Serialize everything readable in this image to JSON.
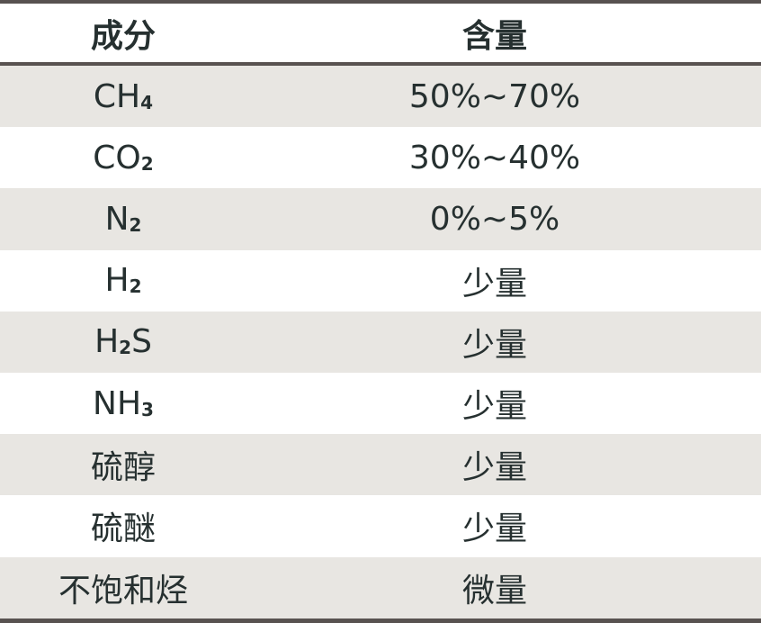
{
  "header": {
    "component": "成分",
    "content": "含量"
  },
  "rows": [
    {
      "base": "CH",
      "sub": "4",
      "tail": "",
      "content": "50%~70%"
    },
    {
      "base": "CO",
      "sub": "2",
      "tail": "",
      "content": "30%~40%"
    },
    {
      "base": "N",
      "sub": "2",
      "tail": "",
      "content": "0%~5%"
    },
    {
      "base": "H",
      "sub": "2",
      "tail": "",
      "content": "少量"
    },
    {
      "base": "H",
      "sub": "2",
      "tail": "S",
      "content": "少量"
    },
    {
      "base": "NH",
      "sub": "3",
      "tail": "",
      "content": "少量"
    },
    {
      "base": "硫醇",
      "sub": "",
      "tail": "",
      "content": "少量"
    },
    {
      "base": "硫醚",
      "sub": "",
      "tail": "",
      "content": "少量"
    },
    {
      "base": "不饱和烃",
      "sub": "",
      "tail": "",
      "content": "微量"
    }
  ],
  "colors": {
    "stripe": "#e8e6e2",
    "rule": "#585250",
    "text": "#263030"
  }
}
